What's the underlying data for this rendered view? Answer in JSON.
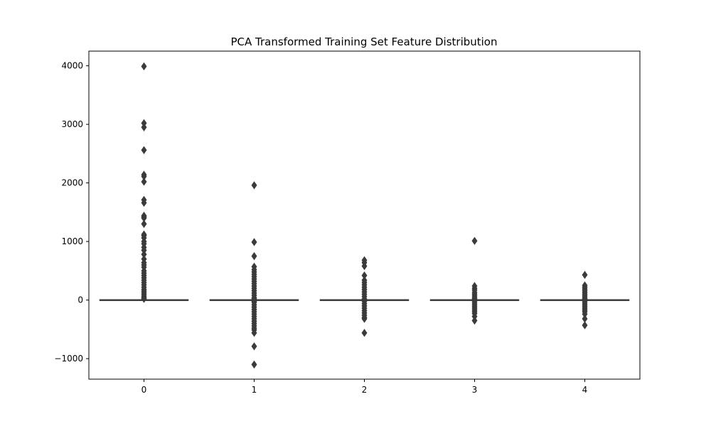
{
  "chart_data": {
    "type": "box",
    "title": "PCA Transformed Training Set Feature Distribution",
    "xlabel": "",
    "ylabel": "",
    "categories": [
      "0",
      "1",
      "2",
      "3",
      "4"
    ],
    "ylim": [
      -1350,
      4250
    ],
    "yticks": [
      -1000,
      0,
      1000,
      2000,
      3000,
      4000
    ],
    "yticklabels": [
      "−1000",
      "0",
      "1000",
      "2000",
      "3000",
      "4000"
    ],
    "grid": false,
    "legend": "none",
    "color": "#3b3b3b",
    "boxes": [
      {
        "category": "0",
        "q1": -5,
        "median": 0,
        "q3": 5,
        "whisker_low": -15,
        "whisker_high": 15,
        "outliers": [
          3990,
          3020,
          2950,
          2560,
          2140,
          2110,
          2020,
          1710,
          1660,
          1440,
          1420,
          1400,
          1300,
          1120,
          1100,
          1060,
          1000,
          960,
          900,
          850,
          780,
          700,
          640,
          600,
          560,
          500,
          460,
          420,
          380,
          340,
          300,
          260,
          220,
          180,
          150,
          120,
          90,
          60,
          40,
          20
        ]
      },
      {
        "category": "1",
        "q1": -5,
        "median": 0,
        "q3": 5,
        "whisker_low": -15,
        "whisker_high": 15,
        "outliers": [
          1960,
          990,
          750,
          570,
          520,
          480,
          440,
          400,
          360,
          320,
          280,
          240,
          200,
          160,
          120,
          80,
          40,
          20,
          -20,
          -40,
          -80,
          -120,
          -160,
          -200,
          -240,
          -280,
          -320,
          -360,
          -400,
          -440,
          -480,
          -510,
          -560,
          -790,
          -1100
        ]
      },
      {
        "category": "2",
        "q1": -5,
        "median": 0,
        "q3": 5,
        "whisker_low": -15,
        "whisker_high": 15,
        "outliers": [
          680,
          640,
          580,
          420,
          340,
          300,
          260,
          220,
          180,
          140,
          100,
          60,
          20,
          -20,
          -60,
          -100,
          -140,
          -180,
          -220,
          -260,
          -300,
          -320,
          -560
        ]
      },
      {
        "category": "3",
        "q1": -5,
        "median": 0,
        "q3": 5,
        "whisker_low": -15,
        "whisker_high": 15,
        "outliers": [
          1010,
          240,
          200,
          170,
          130,
          100,
          70,
          40,
          20,
          -20,
          -50,
          -80,
          -110,
          -140,
          -170,
          -200,
          -230,
          -280,
          -350
        ]
      },
      {
        "category": "4",
        "q1": -5,
        "median": 0,
        "q3": 5,
        "whisker_low": -15,
        "whisker_high": 15,
        "outliers": [
          430,
          250,
          220,
          190,
          160,
          130,
          100,
          70,
          40,
          20,
          -20,
          -50,
          -80,
          -110,
          -140,
          -170,
          -200,
          -240,
          -320,
          -430
        ]
      }
    ]
  }
}
